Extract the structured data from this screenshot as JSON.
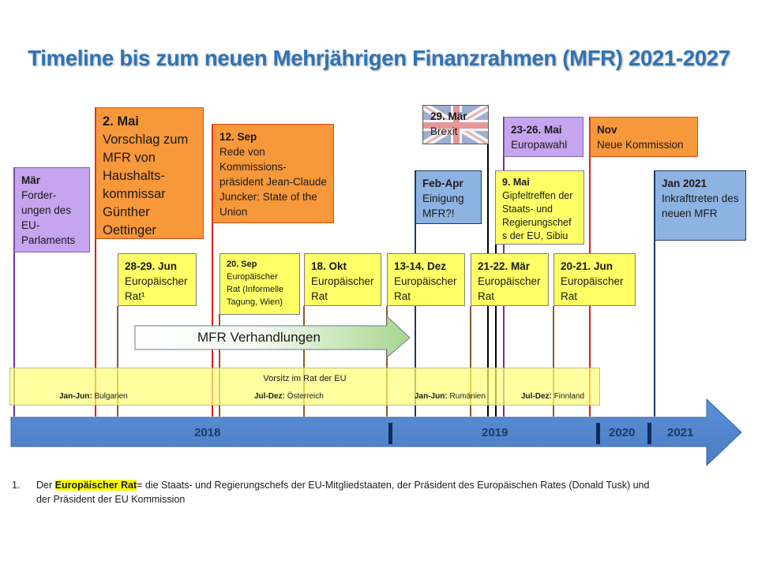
{
  "title": "Timeline bis zum neuen Mehrjährigen Finanzrahmen (MFR) 2021-2027",
  "upper_boxes": [
    {
      "date": "Mär",
      "text": "Forder-ungen des EU-Parlaments"
    },
    {
      "date": "2. Mai",
      "text": "Vorschlag zum MFR von Haushalts-kommissar Günther Oettinger"
    },
    {
      "date": "12. Sep",
      "text": "Rede von Kommissions-präsident Jean-Claude Juncker: State of the Union"
    },
    {
      "date": "29. Mär",
      "text": "Brexit"
    },
    {
      "date": "Feb-Apr",
      "text": "Einigung MFR?!"
    },
    {
      "date": "23-26. Mai",
      "text": "Europawahl"
    },
    {
      "date": "9. Mai",
      "text": "Gipfeltreffen der Staats- und Regierungschef s der EU, Sibiu"
    },
    {
      "date": "Nov",
      "text": "Neue Kommission"
    },
    {
      "date": "Jan 2021",
      "text": "Inkrafttreten des neuen MFR"
    }
  ],
  "council_boxes": [
    {
      "date": "28-29. Jun",
      "text": "Europäischer Rat¹"
    },
    {
      "date": "20. Sep",
      "text": "Europäischer Rat (Informelle Tagung, Wien)"
    },
    {
      "date": "18. Okt",
      "text": "Europäischer Rat"
    },
    {
      "date": "13-14. Dez",
      "text": "Europäischer Rat"
    },
    {
      "date": "21-22. Mär",
      "text": "Europäischer Rat"
    },
    {
      "date": "20-21. Jun",
      "text": "Europäischer Rat"
    }
  ],
  "negotiations_label": "MFR Verhandlungen",
  "presidency": {
    "title": "Vorsitz im Rat der EU",
    "items": [
      {
        "period": "Jan-Jun:",
        "country": "Bulgarien"
      },
      {
        "period": "Jul-Dez:",
        "country": "Österreich"
      },
      {
        "period": "Jan-Jun:",
        "country": "Rumänien"
      },
      {
        "period": "Jul-Dez:",
        "country": "Finnland"
      }
    ]
  },
  "years": [
    "2018",
    "2019",
    "2020",
    "2021"
  ],
  "footnote": {
    "number": "1.",
    "prefix": "Der ",
    "highlight": "Europäischer Rat",
    "text": "= die Staats- und Regierungschefs der EU-Mitgliedstaaten, der Präsident des Europäischen Rates (Donald Tusk) und",
    "line2": "der Präsident der EU Kommission"
  },
  "colors": {
    "title": "#2e74b5",
    "purple": "#c6a4ef",
    "orange": "#f7983a",
    "blue": "#8db3e2",
    "yellow": "#ffff66",
    "axis": "#4f81bd",
    "red_line": "#e31b1b",
    "brown_line": "#8b5a2b"
  }
}
